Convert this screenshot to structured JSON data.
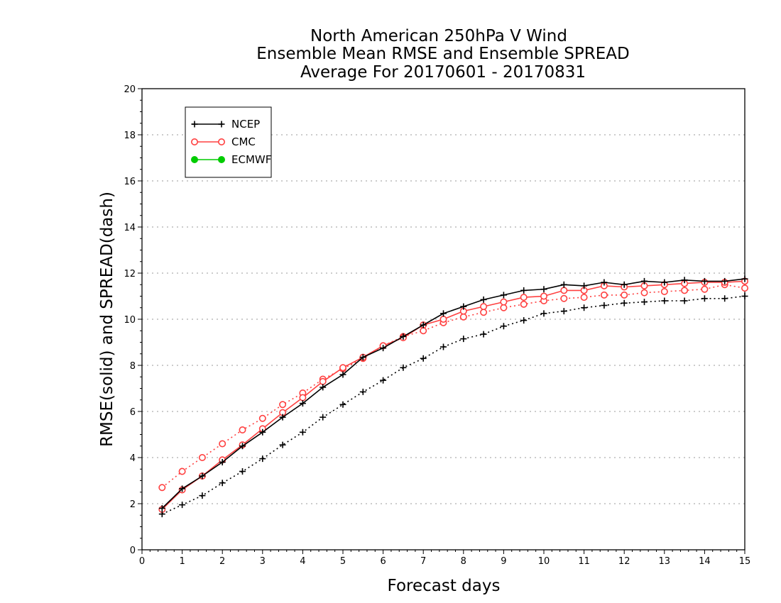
{
  "chart_data": {
    "type": "line",
    "title": [
      "North American 250hPa V Wind",
      "Ensemble Mean RMSE and Ensemble SPREAD",
      "Average For 20170601 - 20170831"
    ],
    "xlabel": "Forecast days",
    "ylabel": "RMSE(solid) and SPREAD(dash)",
    "xlim": [
      0,
      15
    ],
    "ylim": [
      0,
      20
    ],
    "x_ticks": [
      "0",
      "1",
      "2",
      "3",
      "4",
      "5",
      "6",
      "7",
      "8",
      "9",
      "10",
      "11",
      "12",
      "13",
      "14",
      "15"
    ],
    "y_ticks": [
      "0",
      "2",
      "4",
      "6",
      "8",
      "10",
      "12",
      "14",
      "16",
      "18",
      "20"
    ],
    "grid": "horizontal dotted",
    "legend_position": "top-left",
    "x": [
      0.5,
      1,
      1.5,
      2,
      2.5,
      3,
      3.5,
      4,
      4.5,
      5,
      5.5,
      6,
      6.5,
      7,
      7.5,
      8,
      8.5,
      9,
      9.5,
      10,
      10.5,
      11,
      11.5,
      12,
      12.5,
      13,
      13.5,
      14,
      14.5,
      15
    ],
    "series": [
      {
        "name": "NCEP",
        "color": "#000000",
        "marker": "plus",
        "rmse": [
          1.8,
          2.65,
          3.2,
          3.8,
          4.5,
          5.1,
          5.75,
          6.35,
          7.05,
          7.6,
          8.35,
          8.75,
          9.25,
          9.75,
          10.25,
          10.55,
          10.85,
          11.05,
          11.25,
          11.3,
          11.5,
          11.45,
          11.6,
          11.5,
          11.65,
          11.6,
          11.7,
          11.65,
          11.65,
          11.75
        ],
        "spread": [
          1.55,
          1.95,
          2.35,
          2.9,
          3.4,
          3.95,
          4.55,
          5.1,
          5.75,
          6.3,
          6.85,
          7.35,
          7.9,
          8.3,
          8.8,
          9.15,
          9.35,
          9.7,
          9.95,
          10.25,
          10.35,
          10.5,
          10.6,
          10.7,
          10.75,
          10.8,
          10.8,
          10.9,
          10.9,
          11.0
        ]
      },
      {
        "name": "CMC",
        "color": "#ff4040",
        "marker": "open-circle",
        "rmse": [
          1.75,
          2.6,
          3.2,
          3.9,
          4.55,
          5.25,
          5.95,
          6.6,
          7.3,
          7.9,
          8.35,
          8.85,
          9.2,
          9.75,
          10.0,
          10.35,
          10.55,
          10.75,
          10.95,
          11.0,
          11.25,
          11.25,
          11.45,
          11.4,
          11.45,
          11.5,
          11.55,
          11.6,
          11.6,
          11.65
        ],
        "spread": [
          2.7,
          3.4,
          4.0,
          4.6,
          5.2,
          5.7,
          6.3,
          6.8,
          7.4,
          7.85,
          8.3,
          8.85,
          9.25,
          9.5,
          9.85,
          10.1,
          10.3,
          10.5,
          10.65,
          10.8,
          10.9,
          10.95,
          11.05,
          11.05,
          11.15,
          11.2,
          11.25,
          11.3,
          11.5,
          11.35
        ]
      },
      {
        "name": "ECMWF",
        "color": "#00cc00",
        "marker": "filled-circle",
        "rmse": [],
        "spread": []
      }
    ]
  }
}
